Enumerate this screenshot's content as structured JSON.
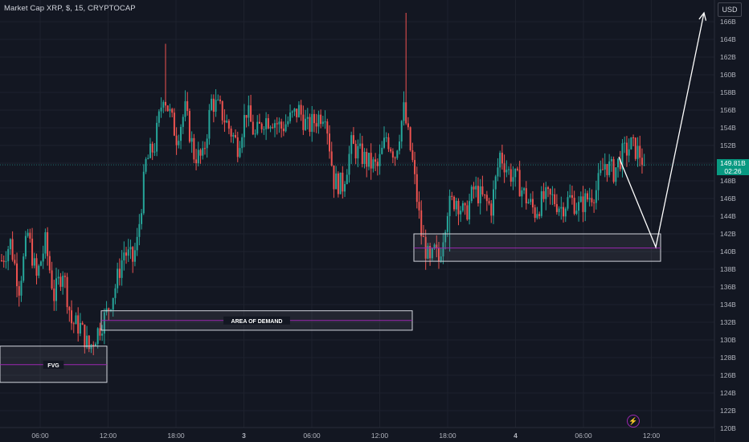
{
  "header": {
    "title": "Market Cap XRP, $, 15, CRYPTOCAP"
  },
  "axis": {
    "currency_label": "USD"
  },
  "last_price": {
    "value": "149.81B",
    "countdown": "02:26"
  },
  "colors": {
    "background": "#131722",
    "up": "#26a69a",
    "down": "#ef5350",
    "grid": "#1e222d",
    "zone_border": "#d1d4dc",
    "midline": "#9c27b0",
    "last_price_tag": "#089981"
  },
  "chart_data": {
    "type": "candlestick",
    "y_unit": "billion USD",
    "ylim": [
      119.5,
      167.5
    ],
    "y_ticks": [
      "166B",
      "164B",
      "162B",
      "160B",
      "158B",
      "156B",
      "154B",
      "152B",
      "150B",
      "148B",
      "146B",
      "144B",
      "142B",
      "140B",
      "138B",
      "136B",
      "134B",
      "132B",
      "130B",
      "128B",
      "126B",
      "124B",
      "122B",
      "120B"
    ],
    "x_ticks": [
      "06:00",
      "12:00",
      "18:00",
      "3",
      "06:00",
      "12:00",
      "18:00",
      "4",
      "06:00",
      "12:00"
    ],
    "price_path": [
      [
        0,
        139
      ],
      [
        4,
        141
      ],
      [
        8,
        136
      ],
      [
        12,
        142
      ],
      [
        16,
        137
      ],
      [
        20,
        141
      ],
      [
        24,
        135
      ],
      [
        28,
        138
      ],
      [
        32,
        132
      ],
      [
        36,
        131.5
      ],
      [
        40,
        129
      ],
      [
        44,
        131
      ],
      [
        48,
        133
      ],
      [
        52,
        136
      ],
      [
        56,
        140
      ],
      [
        60,
        139
      ],
      [
        62,
        141
      ],
      [
        66,
        150
      ],
      [
        70,
        152
      ],
      [
        74,
        158
      ],
      [
        80,
        153
      ],
      [
        84,
        156
      ],
      [
        88,
        151
      ],
      [
        92,
        150.5
      ],
      [
        96,
        157
      ],
      [
        100,
        156
      ],
      [
        104,
        154
      ],
      [
        108,
        152
      ],
      [
        112,
        156
      ],
      [
        116,
        153
      ],
      [
        120,
        155
      ],
      [
        124,
        155
      ],
      [
        128,
        154
      ],
      [
        132,
        155
      ],
      [
        136,
        156
      ],
      [
        140,
        154
      ],
      [
        144,
        155
      ],
      [
        148,
        156
      ],
      [
        152,
        148
      ],
      [
        156,
        147.5
      ],
      [
        160,
        152
      ],
      [
        164,
        151
      ],
      [
        168,
        150
      ],
      [
        172,
        149.5
      ],
      [
        176,
        153
      ],
      [
        180,
        151
      ],
      [
        184,
        156
      ],
      [
        188,
        150
      ],
      [
        192,
        142
      ],
      [
        196,
        138.5
      ],
      [
        198,
        140
      ],
      [
        200,
        139
      ],
      [
        204,
        145
      ],
      [
        208,
        146
      ],
      [
        212,
        144
      ],
      [
        216,
        147
      ],
      [
        220,
        146
      ],
      [
        224,
        145
      ],
      [
        228,
        151
      ],
      [
        232,
        149
      ],
      [
        236,
        148
      ],
      [
        240,
        146
      ],
      [
        244,
        144.5
      ],
      [
        248,
        146
      ],
      [
        252,
        146
      ],
      [
        256,
        145
      ],
      [
        260,
        146
      ],
      [
        264,
        145
      ],
      [
        268,
        146
      ],
      [
        272,
        147
      ],
      [
        276,
        150
      ],
      [
        280,
        149
      ],
      [
        284,
        151
      ],
      [
        288,
        152
      ],
      [
        292,
        151
      ],
      [
        294,
        149.8
      ]
    ],
    "spikes": [
      [
        75,
        163.5
      ],
      [
        185,
        167
      ],
      [
        205,
        140
      ]
    ],
    "last_price": 149.81,
    "zones": [
      {
        "label": "FVG",
        "top": 129.3,
        "bottom": 125.2,
        "mid": 127.2,
        "from": "start",
        "to": "12:00 day 2",
        "style": "box"
      },
      {
        "label": "AREA OF DEMAND",
        "top": 133.3,
        "bottom": 131.1,
        "mid": 132.2,
        "from": "12:00 day 2",
        "to": "12:00 day 3",
        "style": "box"
      },
      {
        "label": "",
        "top": 142.0,
        "bottom": 138.9,
        "mid": 140.4,
        "from": "13:30 day 3",
        "to": "12:20 day 4",
        "style": "box"
      }
    ],
    "projection": [
      {
        "time": "09:30 day 4",
        "price": 150.7
      },
      {
        "time": "12:15 day 4",
        "price": 140.5
      },
      {
        "time": "13:45 day 4",
        "price": 167.0
      }
    ]
  }
}
